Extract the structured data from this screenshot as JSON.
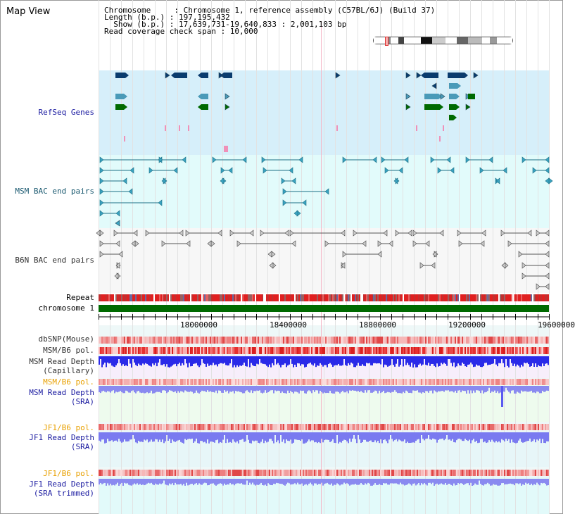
{
  "title": "Map View",
  "info": {
    "line1": "Chromosome     : Chromosome 1, reference assembly (C57BL/6J) (Build 37)",
    "line2": "Length (b.p.) : 197,195,432",
    "line3": "  Show (b.p.) : 17,639,731-19,640,833 : 2,001,103 bp",
    "line4": "Read coverage check span : 10,000"
  },
  "tracks": {
    "refseq": "RefSeq Genes",
    "msm_bac": "MSM BAC end pairs",
    "b6n_bac": "B6N BAC end pairs",
    "repeat": "Repeat",
    "chromosome": "chromosome 1",
    "dbsnp": "dbSNP(Mouse)",
    "msm_pol1": "MSM/B6 pol.",
    "msm_depth_cap_1": "MSM Read Depth",
    "msm_depth_cap_2": "(Capillary)",
    "msm_pol2": "MSM/B6 pol.",
    "msm_depth_sra_1": "MSM Read Depth",
    "msm_depth_sra_2": "(SRA)",
    "jf1_pol1": "JF1/B6 pol.",
    "jf1_depth_sra_1": "JF1 Read Depth",
    "jf1_depth_sra_2": "(SRA)",
    "jf1_pol2": "JF1/B6 pol.",
    "jf1_depth_tr_1": "JF1 Read Depth",
    "jf1_depth_tr_2": "(SRA trimmed)"
  },
  "axis": {
    "ticks": [
      "18000000",
      "18400000",
      "18800000",
      "19200000",
      "19600000"
    ]
  },
  "colors": {
    "refseq_bg": "#d6effa",
    "bac_bg": "#e2fbfb",
    "b6n_bg": "#f6f6f6",
    "chromosome": "#006a00",
    "gene_dark": "#0a3c6e",
    "gene_mid": "#4a9ab8",
    "gene_green": "#006a00",
    "depth_blue": "#2a2ae8",
    "depth_light": "#8a8af0"
  }
}
